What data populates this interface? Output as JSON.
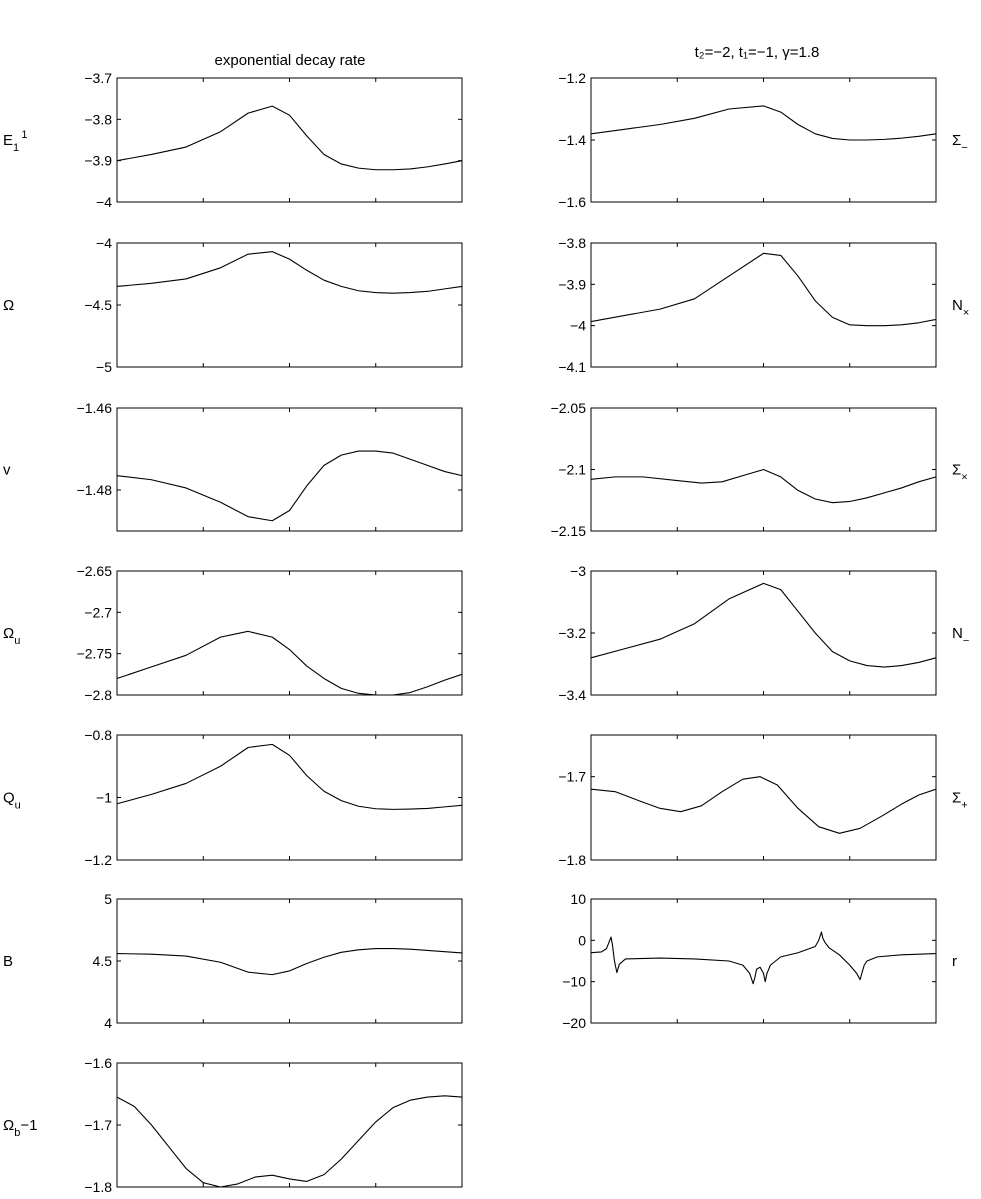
{
  "figure": {
    "left_title": "exponential decay rate",
    "right_title": "t₂=−2, t₁=−1, γ=1.8"
  },
  "chart_data": [
    {
      "type": "line",
      "side_label": "E_1^1",
      "label_main": "E",
      "label_sub": "1",
      "label_sup": "1",
      "ylim": [
        -4,
        -3.7
      ],
      "yticks": [
        -3.7,
        -3.8,
        -3.9,
        -4
      ],
      "ytick_labels": [
        "−3.7",
        "−3.8",
        "−3.9",
        "−4"
      ],
      "xlim": [
        0,
        1
      ],
      "series": [
        {
          "x": [
            0,
            0.1,
            0.2,
            0.3,
            0.38,
            0.45,
            0.5,
            0.55,
            0.6,
            0.65,
            0.7,
            0.75,
            0.8,
            0.85,
            0.9,
            0.95,
            1
          ],
          "y": [
            -3.9,
            -3.885,
            -3.867,
            -3.83,
            -3.785,
            -3.768,
            -3.79,
            -3.84,
            -3.885,
            -3.908,
            -3.918,
            -3.922,
            -3.922,
            -3.92,
            -3.915,
            -3.908,
            -3.9
          ]
        }
      ]
    },
    {
      "type": "line",
      "side_label": "Ω",
      "label_main": "Ω",
      "label_sub": "",
      "label_sup": "",
      "ylim": [
        -5,
        -4
      ],
      "yticks": [
        -4,
        -4.5,
        -5
      ],
      "ytick_labels": [
        "−4",
        "−4.5",
        "−5"
      ],
      "xlim": [
        0,
        1
      ],
      "series": [
        {
          "x": [
            0,
            0.1,
            0.2,
            0.3,
            0.38,
            0.45,
            0.5,
            0.55,
            0.6,
            0.65,
            0.7,
            0.75,
            0.8,
            0.85,
            0.9,
            0.95,
            1
          ],
          "y": [
            -4.35,
            -4.325,
            -4.29,
            -4.2,
            -4.09,
            -4.07,
            -4.13,
            -4.22,
            -4.3,
            -4.35,
            -4.385,
            -4.4,
            -4.405,
            -4.4,
            -4.39,
            -4.37,
            -4.35
          ]
        }
      ]
    },
    {
      "type": "line",
      "side_label": "v",
      "label_main": "v",
      "label_sub": "",
      "label_sup": "",
      "ylim": [
        -1.49,
        -1.46
      ],
      "yticks": [
        -1.46,
        -1.48
      ],
      "ytick_labels": [
        "−1.46",
        "−1.48"
      ],
      "xlim": [
        0,
        1
      ],
      "series": [
        {
          "x": [
            0,
            0.1,
            0.2,
            0.3,
            0.38,
            0.45,
            0.5,
            0.55,
            0.6,
            0.65,
            0.7,
            0.75,
            0.8,
            0.85,
            0.9,
            0.95,
            1
          ],
          "y": [
            -1.4765,
            -1.4775,
            -1.4795,
            -1.483,
            -1.4865,
            -1.4875,
            -1.485,
            -1.479,
            -1.474,
            -1.4715,
            -1.4705,
            -1.4705,
            -1.471,
            -1.4725,
            -1.474,
            -1.4755,
            -1.4765
          ]
        }
      ]
    },
    {
      "type": "line",
      "side_label": "Ω_u",
      "label_main": "Ω",
      "label_sub": "u",
      "label_sup": "",
      "ylim": [
        -2.8,
        -2.65
      ],
      "yticks": [
        -2.65,
        -2.7,
        -2.75,
        -2.8
      ],
      "ytick_labels": [
        "−2.65",
        "−2.7",
        "−2.75",
        "−2.8"
      ],
      "xlim": [
        0,
        1
      ],
      "series": [
        {
          "x": [
            0,
            0.1,
            0.2,
            0.3,
            0.38,
            0.45,
            0.5,
            0.55,
            0.6,
            0.65,
            0.7,
            0.75,
            0.8,
            0.85,
            0.9,
            0.95,
            1
          ],
          "y": [
            -2.78,
            -2.766,
            -2.752,
            -2.73,
            -2.723,
            -2.73,
            -2.745,
            -2.765,
            -2.78,
            -2.792,
            -2.798,
            -2.8,
            -2.8,
            -2.797,
            -2.79,
            -2.782,
            -2.775
          ]
        }
      ]
    },
    {
      "type": "line",
      "side_label": "Q_u",
      "label_main": "Q",
      "label_sub": "u",
      "label_sup": "",
      "ylim": [
        -1.2,
        -0.8
      ],
      "yticks": [
        -0.8,
        -1,
        -1.2
      ],
      "ytick_labels": [
        "−0.8",
        "−1",
        "−1.2"
      ],
      "xlim": [
        0,
        1
      ],
      "series": [
        {
          "x": [
            0,
            0.1,
            0.2,
            0.3,
            0.38,
            0.45,
            0.5,
            0.55,
            0.6,
            0.65,
            0.7,
            0.75,
            0.8,
            0.85,
            0.9,
            0.95,
            1
          ],
          "y": [
            -1.02,
            -0.99,
            -0.955,
            -0.9,
            -0.84,
            -0.83,
            -0.865,
            -0.93,
            -0.98,
            -1.01,
            -1.028,
            -1.036,
            -1.038,
            -1.037,
            -1.035,
            -1.03,
            -1.025
          ]
        }
      ]
    },
    {
      "type": "line",
      "side_label": "B",
      "label_main": "B",
      "label_sub": "",
      "label_sup": "",
      "ylim": [
        4,
        5
      ],
      "yticks": [
        5,
        4.5,
        4
      ],
      "ytick_labels": [
        "5",
        "4.5",
        "4"
      ],
      "xlim": [
        0,
        1
      ],
      "series": [
        {
          "x": [
            0,
            0.1,
            0.2,
            0.3,
            0.38,
            0.45,
            0.5,
            0.55,
            0.6,
            0.65,
            0.7,
            0.75,
            0.8,
            0.85,
            0.9,
            0.95,
            1
          ],
          "y": [
            4.56,
            4.555,
            4.54,
            4.49,
            4.41,
            4.39,
            4.42,
            4.48,
            4.53,
            4.57,
            4.59,
            4.6,
            4.6,
            4.595,
            4.585,
            4.575,
            4.565
          ]
        }
      ]
    },
    {
      "type": "line",
      "side_label": "Ω_b−1",
      "label_main": "Ω",
      "label_sub": "b",
      "label_sup": "",
      "label_suffix": "−1",
      "ylim": [
        -1.8,
        -1.6
      ],
      "yticks": [
        -1.6,
        -1.7,
        -1.8
      ],
      "ytick_labels": [
        "−1.6",
        "−1.7",
        "−1.8"
      ],
      "xlim": [
        0,
        1
      ],
      "series": [
        {
          "x": [
            0,
            0.05,
            0.1,
            0.15,
            0.2,
            0.25,
            0.3,
            0.35,
            0.4,
            0.45,
            0.5,
            0.55,
            0.6,
            0.65,
            0.7,
            0.75,
            0.8,
            0.85,
            0.9,
            0.95,
            1
          ],
          "y": [
            -1.655,
            -1.67,
            -1.7,
            -1.735,
            -1.77,
            -1.793,
            -1.8,
            -1.795,
            -1.784,
            -1.781,
            -1.787,
            -1.791,
            -1.78,
            -1.755,
            -1.725,
            -1.695,
            -1.672,
            -1.66,
            -1.655,
            -1.653,
            -1.655
          ]
        }
      ]
    },
    {
      "type": "line",
      "side_label": "Σ_−",
      "label_main": "Σ",
      "label_sub": "−",
      "label_sup": "",
      "ylim": [
        -1.6,
        -1.2
      ],
      "yticks": [
        -1.2,
        -1.4,
        -1.6
      ],
      "ytick_labels": [
        "−1.2",
        "−1.4",
        "−1.6"
      ],
      "xlim": [
        0,
        1
      ],
      "series": [
        {
          "x": [
            0,
            0.1,
            0.2,
            0.3,
            0.4,
            0.5,
            0.55,
            0.6,
            0.65,
            0.7,
            0.75,
            0.8,
            0.85,
            0.9,
            0.95,
            1
          ],
          "y": [
            -1.38,
            -1.365,
            -1.35,
            -1.33,
            -1.3,
            -1.29,
            -1.31,
            -1.35,
            -1.38,
            -1.395,
            -1.4,
            -1.4,
            -1.398,
            -1.394,
            -1.388,
            -1.38
          ]
        }
      ]
    },
    {
      "type": "line",
      "side_label": "N_×",
      "label_main": "N",
      "label_sub": "×",
      "label_sup": "",
      "ylim": [
        -4.1,
        -3.8
      ],
      "yticks": [
        -3.8,
        -3.9,
        -4,
        -4.1
      ],
      "ytick_labels": [
        "−3.8",
        "−3.9",
        "−4",
        "−4.1"
      ],
      "xlim": [
        0,
        1
      ],
      "series": [
        {
          "x": [
            0,
            0.1,
            0.2,
            0.3,
            0.4,
            0.5,
            0.55,
            0.6,
            0.65,
            0.7,
            0.75,
            0.8,
            0.85,
            0.9,
            0.95,
            1
          ],
          "y": [
            -3.99,
            -3.975,
            -3.96,
            -3.935,
            -3.88,
            -3.825,
            -3.83,
            -3.88,
            -3.94,
            -3.98,
            -3.998,
            -4.0,
            -4.0,
            -3.998,
            -3.993,
            -3.985
          ]
        }
      ]
    },
    {
      "type": "line",
      "side_label": "Σ_×",
      "label_main": "Σ",
      "label_sub": "×",
      "label_sup": "",
      "ylim": [
        -2.15,
        -2.05
      ],
      "yticks": [
        -2.05,
        -2.1,
        -2.15
      ],
      "ytick_labels": [
        "−2.05",
        "−2.1",
        "−2.15"
      ],
      "xlim": [
        0,
        1
      ],
      "series": [
        {
          "x": [
            0,
            0.07,
            0.15,
            0.25,
            0.32,
            0.38,
            0.44,
            0.5,
            0.55,
            0.6,
            0.65,
            0.7,
            0.75,
            0.8,
            0.85,
            0.9,
            0.95,
            1
          ],
          "y": [
            -2.108,
            -2.106,
            -2.106,
            -2.109,
            -2.111,
            -2.11,
            -2.105,
            -2.1,
            -2.106,
            -2.117,
            -2.124,
            -2.127,
            -2.126,
            -2.123,
            -2.119,
            -2.115,
            -2.11,
            -2.106
          ]
        }
      ]
    },
    {
      "type": "line",
      "side_label": "N_−",
      "label_main": "N",
      "label_sub": "−",
      "label_sup": "",
      "ylim": [
        -3.4,
        -3
      ],
      "yticks": [
        -3,
        -3.2,
        -3.4
      ],
      "ytick_labels": [
        "−3",
        "−3.2",
        "−3.4"
      ],
      "xlim": [
        0,
        1
      ],
      "series": [
        {
          "x": [
            0,
            0.1,
            0.2,
            0.3,
            0.4,
            0.5,
            0.55,
            0.6,
            0.65,
            0.7,
            0.75,
            0.8,
            0.85,
            0.9,
            0.95,
            1
          ],
          "y": [
            -3.28,
            -3.25,
            -3.22,
            -3.17,
            -3.09,
            -3.04,
            -3.06,
            -3.13,
            -3.2,
            -3.26,
            -3.29,
            -3.305,
            -3.31,
            -3.305,
            -3.295,
            -3.28
          ]
        }
      ]
    },
    {
      "type": "line",
      "side_label": "Σ_+",
      "label_main": "Σ",
      "label_sub": "+",
      "label_sup": "",
      "ylim": [
        -1.8,
        -1.65
      ],
      "yticks": [
        -1.7,
        -1.8
      ],
      "ytick_labels": [
        "−1.7",
        "−1.8"
      ],
      "xlim": [
        0,
        1
      ],
      "series": [
        {
          "x": [
            0,
            0.07,
            0.14,
            0.2,
            0.26,
            0.32,
            0.38,
            0.44,
            0.49,
            0.54,
            0.6,
            0.66,
            0.72,
            0.78,
            0.84,
            0.9,
            0.95,
            1
          ],
          "y": [
            -1.715,
            -1.718,
            -1.729,
            -1.738,
            -1.742,
            -1.735,
            -1.718,
            -1.703,
            -1.7,
            -1.71,
            -1.738,
            -1.76,
            -1.768,
            -1.762,
            -1.748,
            -1.733,
            -1.722,
            -1.715
          ]
        }
      ]
    },
    {
      "type": "line",
      "side_label": "r",
      "label_main": "r",
      "label_sub": "",
      "label_sup": "",
      "ylim": [
        -20,
        10
      ],
      "yticks": [
        10,
        0,
        -10,
        -20
      ],
      "ytick_labels": [
        "10",
        "0",
        "−10",
        "−20"
      ],
      "xlim": [
        0,
        1
      ],
      "series": [
        {
          "x": [
            0,
            0.03,
            0.045,
            0.052,
            0.058,
            0.062,
            0.068,
            0.075,
            0.082,
            0.1,
            0.2,
            0.3,
            0.4,
            0.44,
            0.46,
            0.47,
            0.475,
            0.48,
            0.49,
            0.5,
            0.505,
            0.51,
            0.52,
            0.55,
            0.6,
            0.65,
            0.66,
            0.668,
            0.672,
            0.678,
            0.69,
            0.72,
            0.75,
            0.77,
            0.78,
            0.785,
            0.792,
            0.8,
            0.83,
            0.9,
            1
          ],
          "y": [
            -3,
            -2.8,
            -2,
            -0.5,
            0.8,
            -1,
            -5,
            -7.8,
            -5.8,
            -4.5,
            -4.3,
            -4.5,
            -5,
            -6,
            -8,
            -10.5,
            -9,
            -7,
            -6.5,
            -8,
            -10,
            -8,
            -6,
            -4,
            -3,
            -1.5,
            0,
            2,
            0.5,
            -0.5,
            -1.8,
            -3.5,
            -6,
            -8,
            -9.5,
            -8,
            -6,
            -5,
            -4,
            -3.5,
            -3.2
          ]
        }
      ]
    }
  ]
}
